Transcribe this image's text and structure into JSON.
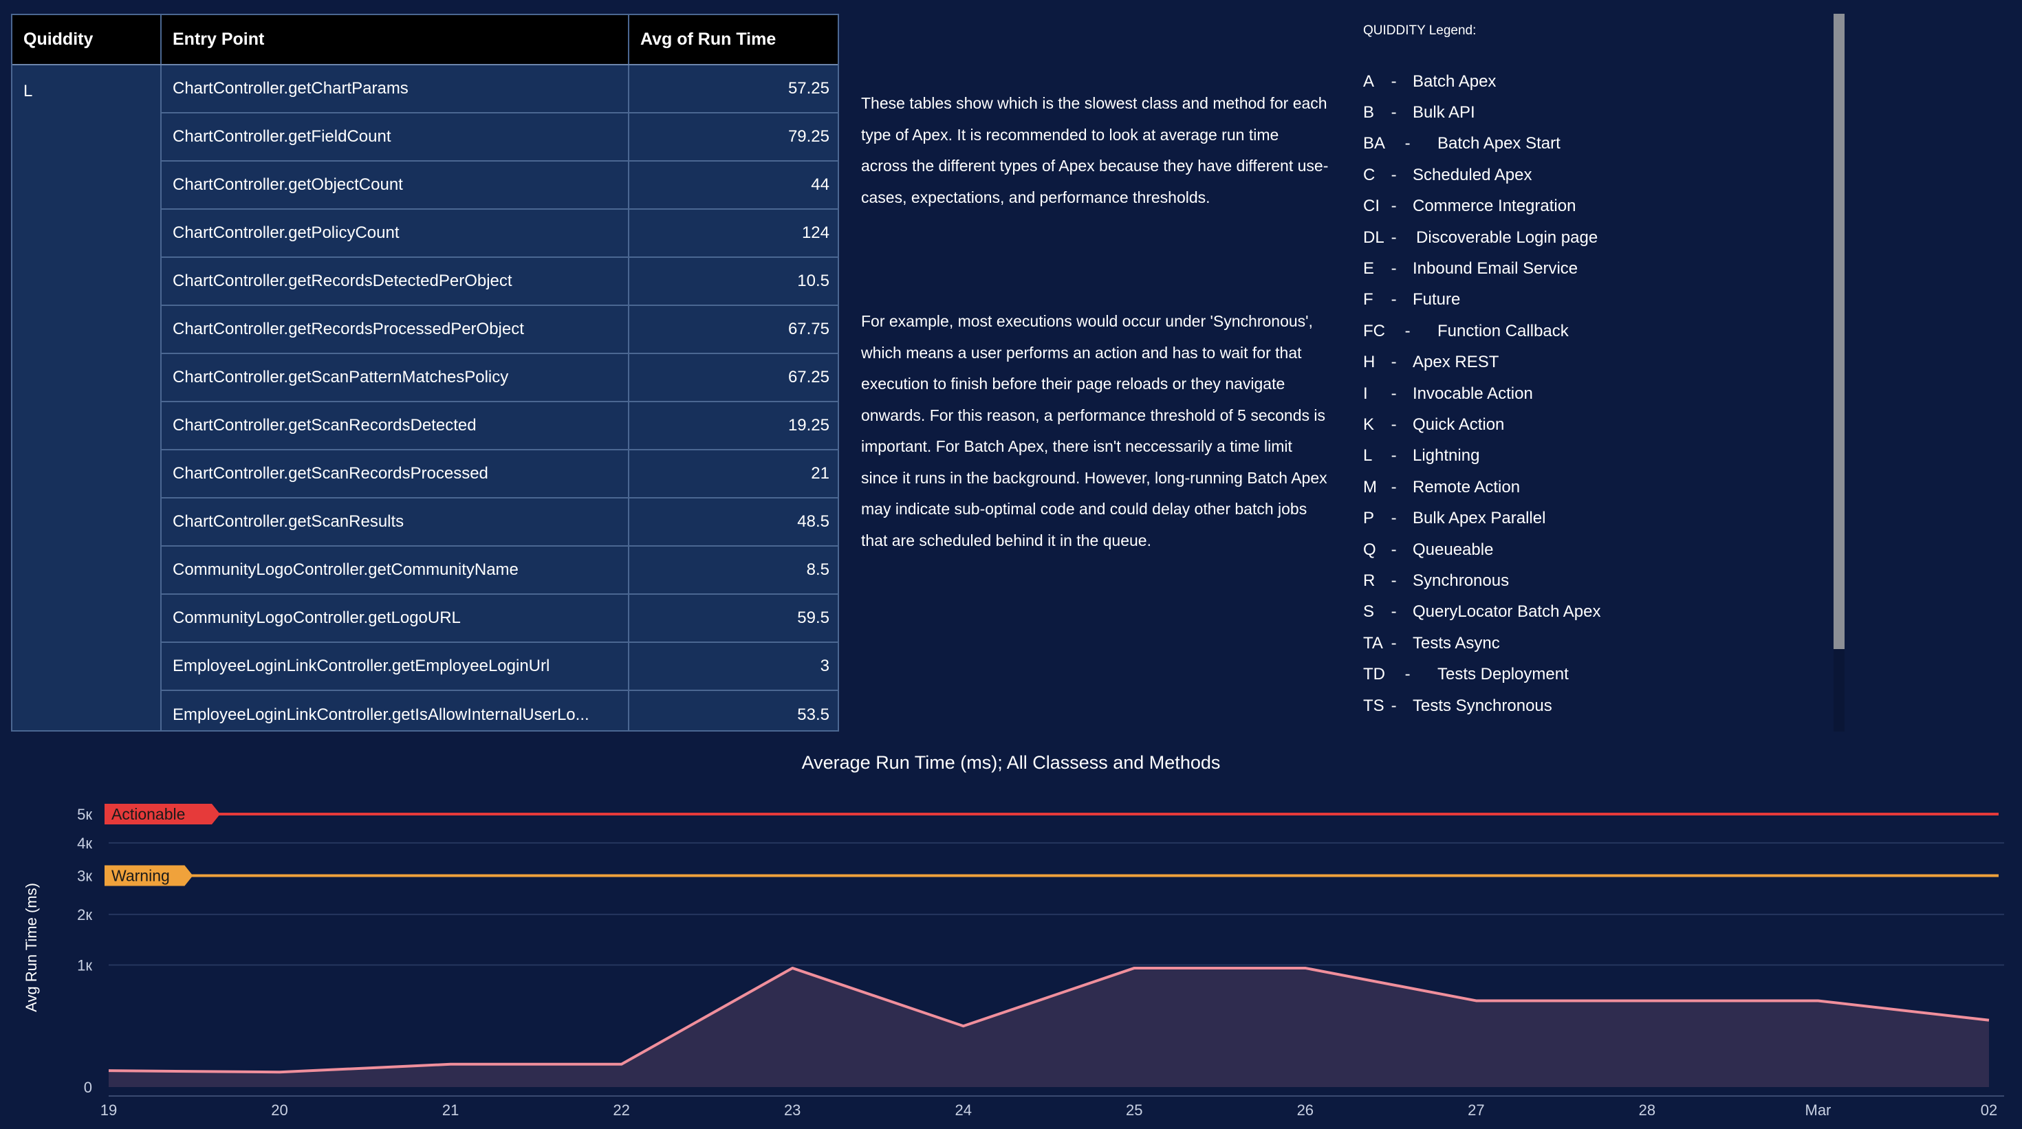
{
  "table": {
    "headers": [
      "Quiddity",
      "Entry Point",
      "Avg of Run Time"
    ],
    "quiddity": "L",
    "rows": [
      {
        "entry": "ChartController.getChartParams",
        "avg": "57.25"
      },
      {
        "entry": "ChartController.getFieldCount",
        "avg": "79.25"
      },
      {
        "entry": "ChartController.getObjectCount",
        "avg": "44"
      },
      {
        "entry": "ChartController.getPolicyCount",
        "avg": "124"
      },
      {
        "entry": "ChartController.getRecordsDetectedPerObject",
        "avg": "10.5"
      },
      {
        "entry": "ChartController.getRecordsProcessedPerObject",
        "avg": "67.75"
      },
      {
        "entry": "ChartController.getScanPatternMatchesPolicy",
        "avg": "67.25"
      },
      {
        "entry": "ChartController.getScanRecordsDetected",
        "avg": "19.25"
      },
      {
        "entry": "ChartController.getScanRecordsProcessed",
        "avg": "21"
      },
      {
        "entry": "ChartController.getScanResults",
        "avg": "48.5"
      },
      {
        "entry": "CommunityLogoController.getCommunityName",
        "avg": "8.5"
      },
      {
        "entry": "CommunityLogoController.getLogoURL",
        "avg": "59.5"
      },
      {
        "entry": "EmployeeLoginLinkController.getEmployeeLoginUrl",
        "avg": "3"
      },
      {
        "entry": "EmployeeLoginLinkController.getIsAllowInternalUserLo...",
        "avg": "53.5"
      }
    ]
  },
  "description": {
    "p1": "These tables show which is the slowest class and method for each type of Apex. It is recommended to look at average run time across the different types of Apex because they have different use-cases, expectations, and performance thresholds.",
    "p2": "For example, most executions would occur under 'Synchronous', which means a user performs an action and has to wait for that execution to finish before their page reloads or they navigate onwards. For this reason, a performance threshold of 5 seconds is important. For Batch Apex, there isn't neccessarily a time limit since it runs in the background. However, long-running Batch Apex may indicate sub-optimal code and could delay other batch jobs that are scheduled behind it in the queue."
  },
  "legend": {
    "title": "QUIDDITY Legend:",
    "items": [
      {
        "code": "A",
        "sep": " -",
        "gap": 26,
        "label": "Batch Apex"
      },
      {
        "code": "B",
        "sep": " -",
        "gap": 26,
        "label": "Bulk API"
      },
      {
        "code": "BA",
        "sep": "    -",
        "gap": 26,
        "label": "Batch Apex Start"
      },
      {
        "code": "C",
        "sep": " -",
        "gap": 26,
        "label": "Scheduled Apex"
      },
      {
        "code": "CI",
        "sep": " -",
        "gap": 26,
        "label": "Commerce Integration"
      },
      {
        "code": "DL",
        "sep": " -",
        "gap": 20,
        "label": "Discoverable Login page"
      },
      {
        "code": "E",
        "sep": " -",
        "gap": 26,
        "label": "Inbound Email Service"
      },
      {
        "code": "F",
        "sep": " -",
        "gap": 26,
        "label": "Future"
      },
      {
        "code": "FC",
        "sep": "    -",
        "gap": 26,
        "label": "Function Callback"
      },
      {
        "code": "H",
        "sep": " -",
        "gap": 26,
        "label": "Apex REST"
      },
      {
        "code": "I",
        "sep": " -",
        "gap": 26,
        "label": "Invocable Action"
      },
      {
        "code": "K",
        "sep": " -",
        "gap": 26,
        "label": "Quick Action"
      },
      {
        "code": "L",
        "sep": " -",
        "gap": 26,
        "label": "Lightning"
      },
      {
        "code": "M",
        "sep": " -",
        "gap": 26,
        "label": "Remote Action"
      },
      {
        "code": "P",
        "sep": " -",
        "gap": 26,
        "label": "Bulk Apex Parallel"
      },
      {
        "code": "Q",
        "sep": " -",
        "gap": 26,
        "label": "Queueable"
      },
      {
        "code": "R",
        "sep": " -",
        "gap": 26,
        "label": "Synchronous"
      },
      {
        "code": "S",
        "sep": " -",
        "gap": 26,
        "label": "QueryLocator Batch Apex"
      },
      {
        "code": "TA",
        "sep": " -",
        "gap": 26,
        "label": "Tests Async"
      },
      {
        "code": "TD",
        "sep": "    -",
        "gap": 26,
        "label": "Tests Deployment"
      },
      {
        "code": "TS",
        "sep": " -",
        "gap": 26,
        "label": "Tests Synchronous"
      }
    ]
  },
  "chart_data": {
    "type": "area",
    "title": "Average Run Time (ms); All Classess and Methods",
    "ylabel": "Avg Run Time (ms)",
    "xlabel": "",
    "x": [
      "19",
      "20",
      "21",
      "22",
      "23",
      "24",
      "25",
      "26",
      "27",
      "28",
      "Mar",
      "02"
    ],
    "y_ticks": [
      {
        "value": 0,
        "label": "0"
      },
      {
        "value": 1000,
        "label": "1к"
      },
      {
        "value": 2000,
        "label": "2к"
      },
      {
        "value": 3000,
        "label": "3к"
      },
      {
        "value": 4000,
        "label": "4к"
      },
      {
        "value": 5000,
        "label": "5к"
      }
    ],
    "y_scale": "sqrt",
    "series": [
      {
        "values": [
          18,
          15,
          35,
          35,
          950,
          250,
          950,
          950,
          500,
          500,
          500,
          300
        ],
        "color": "#f08f9c",
        "fill": "#2f2c4f"
      }
    ],
    "thresholds": [
      {
        "label": "Actionable",
        "value": 5000,
        "color": "#e63a3a"
      },
      {
        "label": "Warning",
        "value": 3000,
        "color": "#f0a23b"
      }
    ],
    "grid": true
  }
}
